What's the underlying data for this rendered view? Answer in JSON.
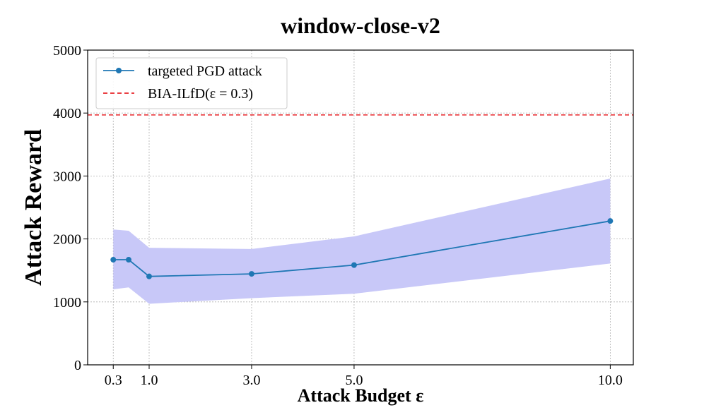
{
  "chart_data": {
    "type": "line",
    "title": "window-close-v2",
    "xlabel": "Attack Budget ε",
    "ylabel": "Attack Reward",
    "x": [
      0.3,
      0.6,
      1.0,
      3.0,
      5.0,
      10.0
    ],
    "xticks": [
      0.3,
      1.0,
      3.0,
      5.0,
      10.0
    ],
    "xtick_labels": [
      "0.3",
      "1.0",
      "3.0",
      "5.0",
      "10.0"
    ],
    "yticks": [
      0,
      1000,
      2000,
      3000,
      4000,
      5000
    ],
    "ytick_labels": [
      "0",
      "1000",
      "2000",
      "3000",
      "4000",
      "5000"
    ],
    "xlim": [
      -0.2,
      10.45
    ],
    "ylim": [
      0,
      5000
    ],
    "grid": true,
    "legend_position": "top-left",
    "series": [
      {
        "name": "targeted PGD attack",
        "values": [
          1670,
          1670,
          1405,
          1445,
          1585,
          2285
        ],
        "lower": [
          1200,
          1230,
          970,
          1060,
          1130,
          1610
        ],
        "upper": [
          2150,
          2130,
          1860,
          1840,
          2040,
          2960
        ],
        "color": "#1f77b4",
        "band_color": "#c8c8f8",
        "marker": "circle"
      }
    ],
    "hlines": [
      {
        "name": "BIA-ILfD(ε = 0.3)",
        "value": 3970,
        "color": "#e8262a",
        "style": "dashed"
      }
    ]
  }
}
